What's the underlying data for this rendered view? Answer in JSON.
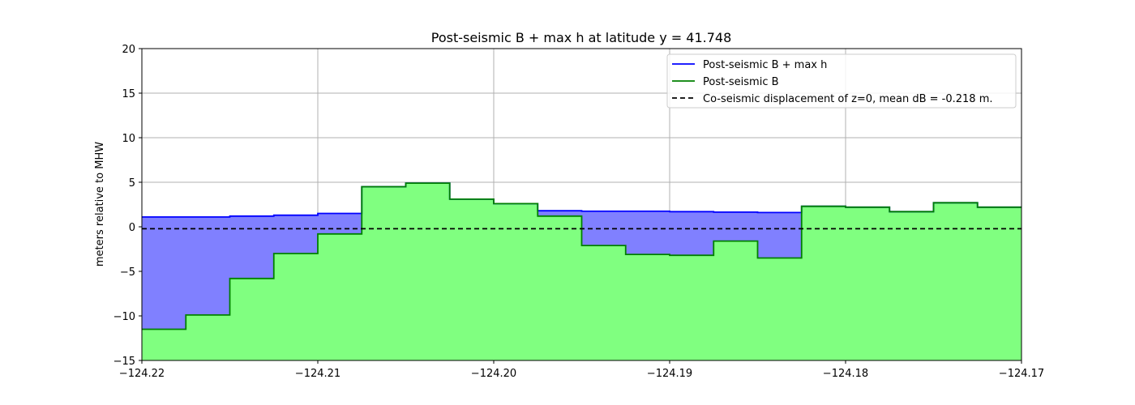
{
  "chart_data": {
    "type": "line",
    "title": "Post-seismic B + max h at latitude y = 41.748",
    "xlabel": "",
    "ylabel": "meters relative to MHW",
    "xlim": [
      -124.22,
      -124.17
    ],
    "ylim": [
      -15,
      20
    ],
    "xticks": [
      -124.22,
      -124.21,
      -124.2,
      -124.19,
      -124.18,
      -124.17
    ],
    "xtick_labels": [
      "−124.22",
      "−124.21",
      "−124.20",
      "−124.19",
      "−124.18",
      "−124.17"
    ],
    "yticks": [
      -15,
      -10,
      -5,
      0,
      5,
      10,
      15,
      20
    ],
    "ytick_labels": [
      "−15",
      "−10",
      "−5",
      "0",
      "5",
      "10",
      "15",
      "20"
    ],
    "grid": true,
    "legend_position": "top-right",
    "colors": {
      "b_plus_h_line": "#0000ff",
      "b_plus_h_fill": "#8080ff",
      "b_line": "#008000",
      "b_fill": "#80ff80",
      "dashed": "#000000"
    },
    "series": [
      {
        "name": "Post-seismic B + max h",
        "step": "post",
        "x": [
          -124.22,
          -124.2175,
          -124.215,
          -124.2125,
          -124.21,
          -124.2075,
          -124.205,
          -124.2025,
          -124.2,
          -124.1975,
          -124.195,
          -124.1925,
          -124.19,
          -124.1875,
          -124.185,
          -124.1825,
          -124.18,
          -124.1775,
          -124.175,
          -124.1725
        ],
        "values": [
          1.1,
          1.1,
          1.2,
          1.3,
          1.5,
          4.5,
          4.9,
          3.1,
          2.6,
          1.8,
          1.75,
          1.75,
          1.7,
          1.65,
          1.6,
          2.3,
          2.2,
          1.7,
          2.7,
          2.2
        ],
        "x_end": -124.17
      },
      {
        "name": "Post-seismic B",
        "step": "post",
        "x": [
          -124.22,
          -124.2175,
          -124.215,
          -124.2125,
          -124.21,
          -124.2075,
          -124.205,
          -124.2025,
          -124.2,
          -124.1975,
          -124.195,
          -124.1925,
          -124.19,
          -124.1875,
          -124.185,
          -124.1825,
          -124.18,
          -124.1775,
          -124.175,
          -124.1725
        ],
        "values": [
          -11.5,
          -9.9,
          -5.8,
          -3.0,
          -0.8,
          4.5,
          4.9,
          3.1,
          2.6,
          1.2,
          -2.1,
          -3.1,
          -3.2,
          -1.6,
          -3.5,
          2.3,
          2.2,
          1.7,
          2.7,
          2.2
        ],
        "x_end": -124.17
      },
      {
        "name": "Co-seismic displacement of z=0, mean dB = -0.218 m.",
        "style": "dashed",
        "x": [
          -124.22,
          -124.17
        ],
        "values": [
          -0.218,
          -0.218
        ]
      }
    ]
  }
}
